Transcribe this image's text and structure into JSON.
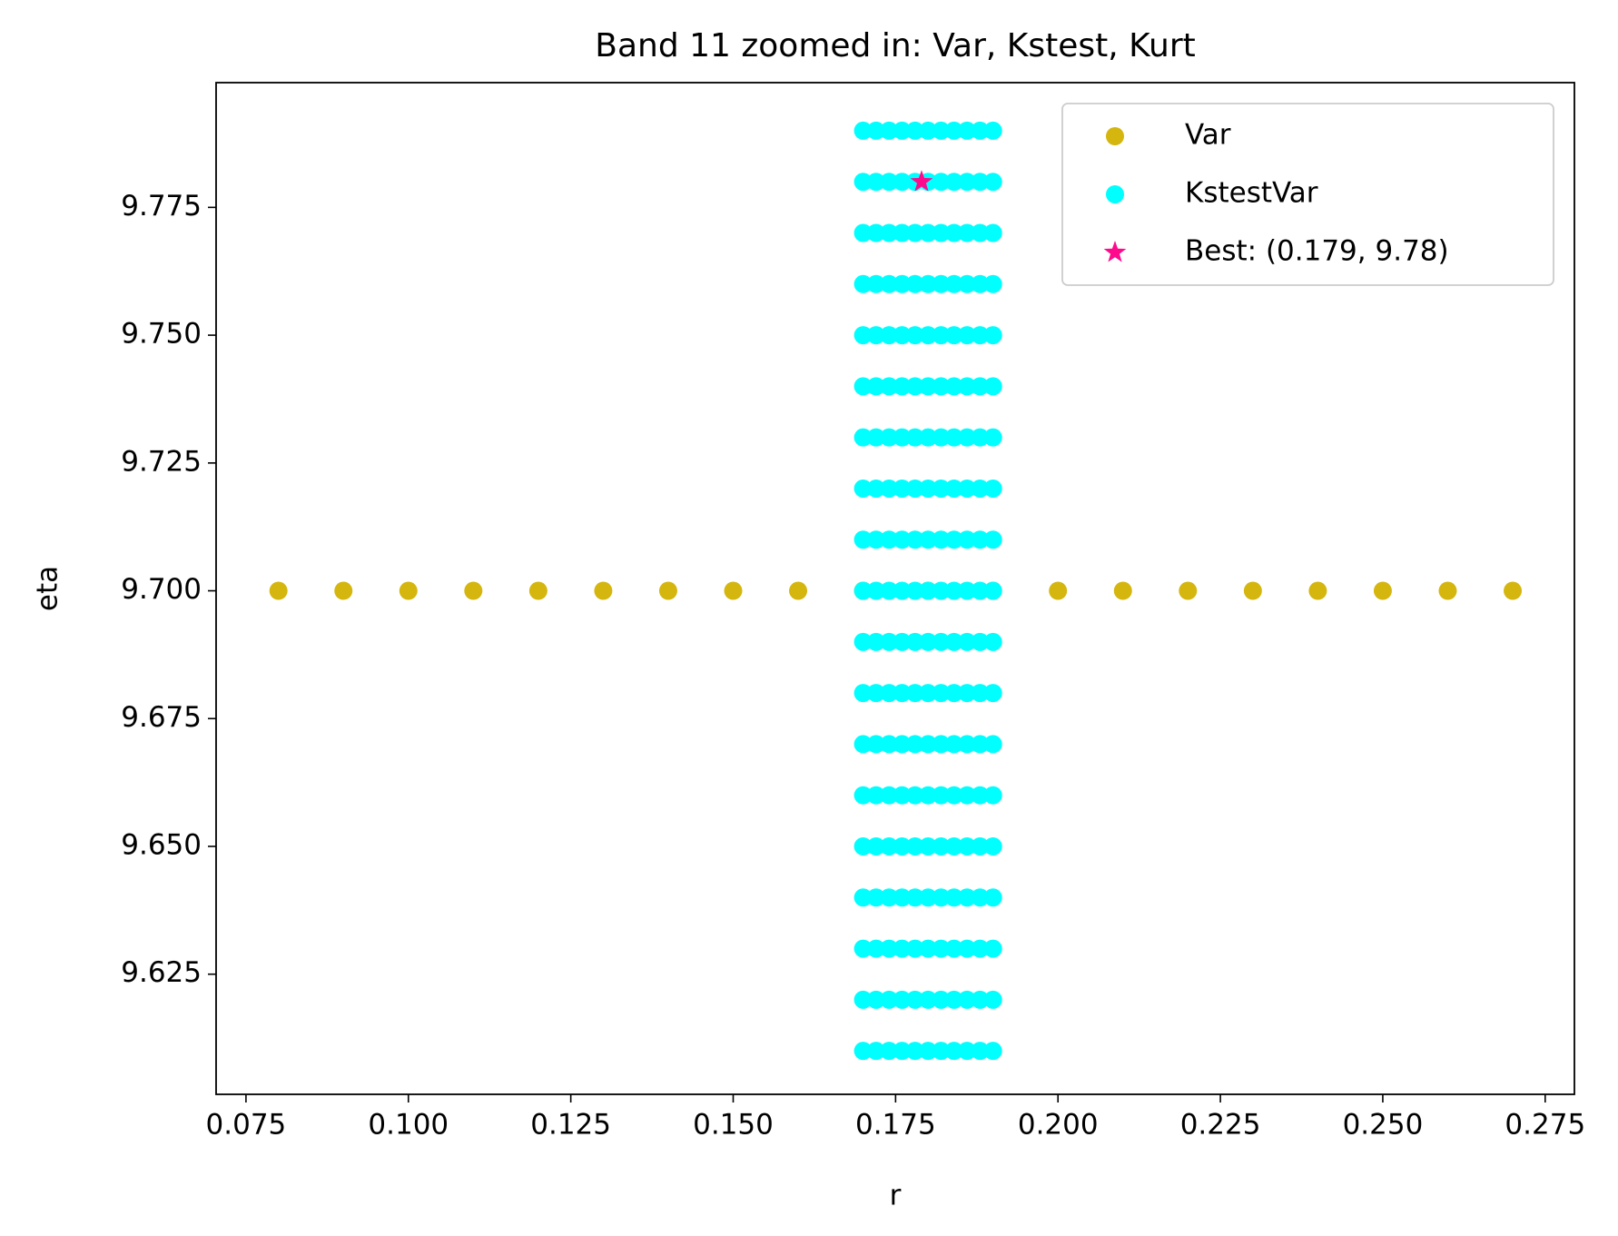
{
  "chart_data": {
    "type": "scatter",
    "title": "Band 11 zoomed in: Var, Kstest, Kurt",
    "x_label": "r",
    "y_label": "eta",
    "xlim": [
      0.0704,
      0.2795
    ],
    "ylim": [
      9.6015,
      9.7994
    ],
    "xticks": [
      0.075,
      {
        "value": 0.1,
        "label": "0.100"
      },
      0.125,
      {
        "value": 0.15,
        "label": "0.150"
      },
      0.175,
      {
        "value": 0.2,
        "label": "0.200"
      },
      0.225,
      {
        "value": 0.25,
        "label": "0.250"
      },
      0.275
    ],
    "yticks": [
      9.625,
      {
        "value": 9.65,
        "label": "9.650"
      },
      9.675,
      {
        "value": 9.7,
        "label": "9.700"
      },
      9.725,
      {
        "value": 9.75,
        "label": "9.750"
      },
      9.775
    ],
    "legend": "upper right",
    "series": [
      {
        "name": "Var",
        "color": "#d4b60f",
        "marker": "circle",
        "x": [
          0.08,
          0.09,
          0.1,
          0.11,
          0.12,
          0.13,
          0.14,
          0.15,
          0.16,
          0.17,
          0.18,
          0.19,
          0.2,
          0.21,
          0.22,
          0.23,
          0.24,
          0.25,
          0.26,
          0.27
        ],
        "values": [
          9.7,
          9.7,
          9.7,
          9.7,
          9.7,
          9.7,
          9.7,
          9.7,
          9.7,
          9.7,
          9.7,
          9.7,
          9.7,
          9.7,
          9.7,
          9.7,
          9.7,
          9.7,
          9.7,
          9.7
        ]
      },
      {
        "name": "KstestVar",
        "color": "#00ffff",
        "marker": "circle",
        "x": [
          0.17,
          0.172,
          0.174,
          0.176,
          0.178,
          0.18,
          0.182,
          0.184,
          0.186,
          0.188,
          0.19,
          0.17,
          0.172,
          0.174,
          0.176,
          0.178,
          0.18,
          0.182,
          0.184,
          0.186,
          0.188,
          0.19,
          0.17,
          0.172,
          0.174,
          0.176,
          0.178,
          0.18,
          0.182,
          0.184,
          0.186,
          0.188,
          0.19,
          0.17,
          0.172,
          0.174,
          0.176,
          0.178,
          0.18,
          0.182,
          0.184,
          0.186,
          0.188,
          0.19,
          0.17,
          0.172,
          0.174,
          0.176,
          0.178,
          0.18,
          0.182,
          0.184,
          0.186,
          0.188,
          0.19,
          0.17,
          0.172,
          0.174,
          0.176,
          0.178,
          0.18,
          0.182,
          0.184,
          0.186,
          0.188,
          0.19,
          0.17,
          0.172,
          0.174,
          0.176,
          0.178,
          0.18,
          0.182,
          0.184,
          0.186,
          0.188,
          0.19,
          0.17,
          0.172,
          0.174,
          0.176,
          0.178,
          0.18,
          0.182,
          0.184,
          0.186,
          0.188,
          0.19,
          0.17,
          0.172,
          0.174,
          0.176,
          0.178,
          0.18,
          0.182,
          0.184,
          0.186,
          0.188,
          0.19,
          0.17,
          0.172,
          0.174,
          0.176,
          0.178,
          0.18,
          0.182,
          0.184,
          0.186,
          0.188,
          0.19,
          0.17,
          0.172,
          0.174,
          0.176,
          0.178,
          0.18,
          0.182,
          0.184,
          0.186,
          0.188,
          0.19,
          0.17,
          0.172,
          0.174,
          0.176,
          0.178,
          0.18,
          0.182,
          0.184,
          0.186,
          0.188,
          0.19,
          0.17,
          0.172,
          0.174,
          0.176,
          0.178,
          0.18,
          0.182,
          0.184,
          0.186,
          0.188,
          0.19,
          0.17,
          0.172,
          0.174,
          0.176,
          0.178,
          0.18,
          0.182,
          0.184,
          0.186,
          0.188,
          0.19,
          0.17,
          0.172,
          0.174,
          0.176,
          0.178,
          0.18,
          0.182,
          0.184,
          0.186,
          0.188,
          0.19,
          0.17,
          0.172,
          0.174,
          0.176,
          0.178,
          0.18,
          0.182,
          0.184,
          0.186,
          0.188,
          0.19,
          0.17,
          0.172,
          0.174,
          0.176,
          0.178,
          0.18,
          0.182,
          0.184,
          0.186,
          0.188,
          0.19,
          0.17,
          0.172,
          0.174,
          0.176,
          0.178,
          0.18,
          0.182,
          0.184,
          0.186,
          0.188,
          0.19,
          0.17,
          0.172,
          0.174,
          0.176,
          0.178,
          0.18,
          0.182,
          0.184,
          0.186,
          0.188,
          0.19
        ],
        "values": [
          9.61,
          9.61,
          9.61,
          9.61,
          9.61,
          9.61,
          9.61,
          9.61,
          9.61,
          9.61,
          9.61,
          9.62,
          9.62,
          9.62,
          9.62,
          9.62,
          9.62,
          9.62,
          9.62,
          9.62,
          9.62,
          9.62,
          9.63,
          9.63,
          9.63,
          9.63,
          9.63,
          9.63,
          9.63,
          9.63,
          9.63,
          9.63,
          9.63,
          9.64,
          9.64,
          9.64,
          9.64,
          9.64,
          9.64,
          9.64,
          9.64,
          9.64,
          9.64,
          9.64,
          9.65,
          9.65,
          9.65,
          9.65,
          9.65,
          9.65,
          9.65,
          9.65,
          9.65,
          9.65,
          9.65,
          9.66,
          9.66,
          9.66,
          9.66,
          9.66,
          9.66,
          9.66,
          9.66,
          9.66,
          9.66,
          9.66,
          9.67,
          9.67,
          9.67,
          9.67,
          9.67,
          9.67,
          9.67,
          9.67,
          9.67,
          9.67,
          9.67,
          9.68,
          9.68,
          9.68,
          9.68,
          9.68,
          9.68,
          9.68,
          9.68,
          9.68,
          9.68,
          9.68,
          9.69,
          9.69,
          9.69,
          9.69,
          9.69,
          9.69,
          9.69,
          9.69,
          9.69,
          9.69,
          9.69,
          9.7,
          9.7,
          9.7,
          9.7,
          9.7,
          9.7,
          9.7,
          9.7,
          9.7,
          9.7,
          9.7,
          9.71,
          9.71,
          9.71,
          9.71,
          9.71,
          9.71,
          9.71,
          9.71,
          9.71,
          9.71,
          9.71,
          9.72,
          9.72,
          9.72,
          9.72,
          9.72,
          9.72,
          9.72,
          9.72,
          9.72,
          9.72,
          9.72,
          9.73,
          9.73,
          9.73,
          9.73,
          9.73,
          9.73,
          9.73,
          9.73,
          9.73,
          9.73,
          9.73,
          9.74,
          9.74,
          9.74,
          9.74,
          9.74,
          9.74,
          9.74,
          9.74,
          9.74,
          9.74,
          9.74,
          9.75,
          9.75,
          9.75,
          9.75,
          9.75,
          9.75,
          9.75,
          9.75,
          9.75,
          9.75,
          9.75,
          9.76,
          9.76,
          9.76,
          9.76,
          9.76,
          9.76,
          9.76,
          9.76,
          9.76,
          9.76,
          9.76,
          9.77,
          9.77,
          9.77,
          9.77,
          9.77,
          9.77,
          9.77,
          9.77,
          9.77,
          9.77,
          9.77,
          9.78,
          9.78,
          9.78,
          9.78,
          9.78,
          9.78,
          9.78,
          9.78,
          9.78,
          9.78,
          9.78,
          9.79,
          9.79,
          9.79,
          9.79,
          9.79,
          9.79,
          9.79,
          9.79,
          9.79,
          9.79,
          9.79
        ]
      },
      {
        "name": "Best: (0.179, 9.78)",
        "color": "#ff0a8c",
        "marker": "star",
        "x": [
          0.179
        ],
        "values": [
          9.78
        ]
      }
    ]
  }
}
